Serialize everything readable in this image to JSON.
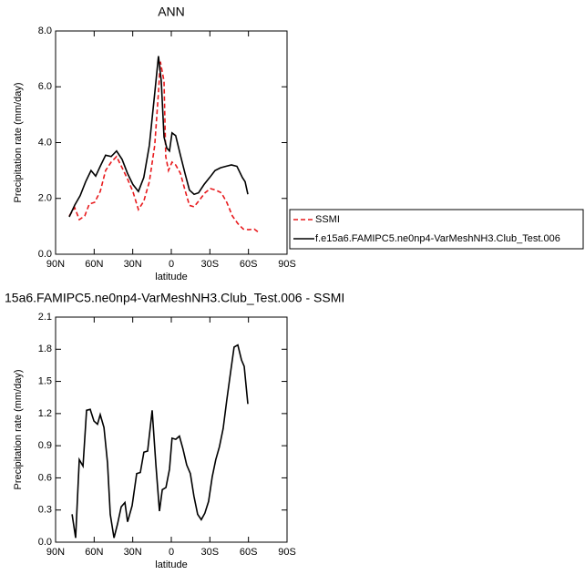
{
  "chart_data": [
    {
      "type": "line",
      "title": "ANN",
      "xlabel": "latitude",
      "ylabel": "Precipitation rate (mm/day)",
      "xlim": [
        90,
        -90
      ],
      "xticks": [
        {
          "value": 90,
          "label": "90N"
        },
        {
          "value": 60,
          "label": "60N"
        },
        {
          "value": 30,
          "label": "30N"
        },
        0,
        {
          "value": -30,
          "label": "30S"
        },
        {
          "value": -60,
          "label": "60S"
        },
        {
          "value": -90,
          "label": "90S"
        }
      ],
      "ylim": [
        0,
        8
      ],
      "yticks": [
        {
          "value": 0,
          "label": "0.0"
        },
        {
          "value": 2,
          "label": "2.0"
        },
        {
          "value": 4,
          "label": "4.0"
        },
        {
          "value": 6,
          "label": "6.0"
        },
        {
          "value": 8,
          "label": "8.0"
        }
      ],
      "legend": "right",
      "series": [
        {
          "name": "SSMI",
          "color": "#e8191c",
          "line_style": "dashed",
          "x": [
            79.4,
            75.1,
            71.6,
            67.3,
            63.8,
            59.6,
            55.3,
            51.1,
            46.8,
            42.6,
            38.3,
            34.1,
            29.9,
            25.6,
            21.4,
            17.1,
            12.9,
            10.0,
            8.5,
            5.7,
            4.3,
            2.2,
            -0.6,
            -3.4,
            -7.1,
            -10.6,
            -14.1,
            -17.7,
            -21.2,
            -26.2,
            -30.4,
            -34.6,
            -38.9,
            -43.2,
            -47.5,
            -51.7,
            -56.0,
            -60.2,
            -64.5,
            -68.0
          ],
          "values": [
            1.37,
            1.67,
            1.24,
            1.37,
            1.8,
            1.86,
            2.25,
            3.0,
            3.3,
            3.5,
            3.1,
            2.7,
            2.25,
            1.6,
            1.9,
            2.6,
            3.9,
            5.8,
            6.9,
            6.2,
            3.5,
            3.0,
            3.3,
            3.2,
            2.9,
            2.3,
            1.75,
            1.7,
            1.9,
            2.2,
            2.35,
            2.3,
            2.2,
            1.85,
            1.37,
            1.1,
            0.9,
            0.88,
            0.9,
            0.78
          ]
        },
        {
          "name": "f.e15a6.FAMIPC5.ne0np4-VarMeshNH3.Club_Test.006",
          "color": "#000000",
          "line_style": "solid",
          "x": [
            79.4,
            75.1,
            70.9,
            66.6,
            62.4,
            58.8,
            55.3,
            51.1,
            46.8,
            42.6,
            38.3,
            34.1,
            29.9,
            25.6,
            21.4,
            17.1,
            12.8,
            10.0,
            7.8,
            5.7,
            3.5,
            1.4,
            -0.6,
            -3.4,
            -7.1,
            -10.6,
            -14.1,
            -17.7,
            -21.2,
            -25.5,
            -29.8,
            -34.0,
            -38.3,
            -42.5,
            -46.8,
            -51.0,
            -55.3,
            -57.4,
            -59.5
          ],
          "values": [
            1.34,
            1.76,
            2.1,
            2.6,
            3.0,
            2.8,
            3.15,
            3.55,
            3.5,
            3.7,
            3.4,
            2.9,
            2.5,
            2.25,
            2.75,
            3.9,
            5.8,
            7.1,
            6.2,
            4.2,
            3.8,
            3.7,
            4.35,
            4.25,
            3.55,
            2.9,
            2.3,
            2.15,
            2.2,
            2.5,
            2.75,
            3.0,
            3.1,
            3.15,
            3.2,
            3.15,
            2.75,
            2.6,
            2.15
          ]
        }
      ]
    },
    {
      "type": "line",
      "title": "15a6.FAMIPC5.ne0np4-VarMeshNH3.Club_Test.006 - SSMI",
      "xlabel": "latitude",
      "ylabel": "Precipitation rate (mm/day)",
      "xlim": [
        90,
        -90
      ],
      "xticks": [
        {
          "value": 90,
          "label": "90N"
        },
        {
          "value": 60,
          "label": "60N"
        },
        {
          "value": 30,
          "label": "30N"
        },
        0,
        {
          "value": -30,
          "label": "30S"
        },
        {
          "value": -60,
          "label": "60S"
        },
        {
          "value": -90,
          "label": "90S"
        }
      ],
      "ylim": [
        0,
        2.1
      ],
      "yticks": [
        {
          "value": 0,
          "label": "0.0"
        },
        0.3,
        0.6,
        0.9,
        {
          "value": 1.2,
          "label": "1.2"
        },
        1.5,
        1.8,
        2.1
      ],
      "series": [
        {
          "color": "#000000",
          "line_style": "solid",
          "x": [
            77.2,
            74.4,
            71.6,
            68.7,
            65.9,
            63.1,
            60.2,
            57.4,
            55.3,
            52.4,
            49.6,
            47.5,
            44.6,
            41.8,
            39.0,
            36.1,
            34.0,
            30.5,
            26.9,
            24.1,
            21.3,
            18.4,
            14.9,
            12.0,
            9.2,
            7.0,
            4.2,
            1.4,
            -0.6,
            -3.5,
            -6.3,
            -9.1,
            -12.0,
            -14.8,
            -17.6,
            -20.5,
            -23.3,
            -26.1,
            -29.0,
            -31.8,
            -34.6,
            -37.4,
            -40.3,
            -43.1,
            -45.9,
            -48.8,
            -51.7,
            -54.6,
            -56.7,
            -59.5
          ],
          "values": [
            0.26,
            0.04,
            0.77,
            0.71,
            1.23,
            1.24,
            1.13,
            1.1,
            1.19,
            1.07,
            0.74,
            0.26,
            0.04,
            0.17,
            0.33,
            0.37,
            0.19,
            0.34,
            0.64,
            0.65,
            0.84,
            0.85,
            1.23,
            0.72,
            0.29,
            0.49,
            0.51,
            0.68,
            0.97,
            0.96,
            0.99,
            0.87,
            0.72,
            0.64,
            0.43,
            0.26,
            0.21,
            0.27,
            0.38,
            0.61,
            0.77,
            0.89,
            1.06,
            1.32,
            1.57,
            1.82,
            1.84,
            1.7,
            1.64,
            1.29
          ]
        }
      ]
    }
  ]
}
